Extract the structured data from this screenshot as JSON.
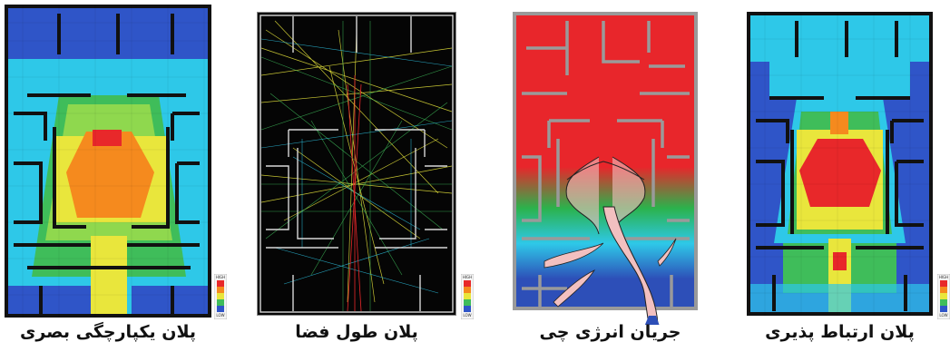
{
  "panels": [
    {
      "key": "visual_integration",
      "caption": "پلان یکپارچگی بصری"
    },
    {
      "key": "space_length",
      "caption": "پلان طول فضا"
    },
    {
      "key": "energy_flow",
      "caption": "جریان انرژی چی"
    },
    {
      "key": "connectivity",
      "caption": "پلان ارتباط پذیری"
    }
  ],
  "legend": {
    "high_label": "HIGH",
    "low_label": "LOW"
  },
  "colors": {
    "high": "#e8282a",
    "upper": "#f58a1e",
    "mid": "#e9e63c",
    "green": "#3fbd5a",
    "cyan": "#2ec8e8",
    "blue": "#2f55c8",
    "navy": "#1f2b8a",
    "wall": "#111111",
    "grey_wall": "#9a9a9a",
    "energy_red": "#e8262b",
    "energy_green": "#2bb24c",
    "energy_blue": "#2d4fb8",
    "flow": "#f2c0c0"
  }
}
